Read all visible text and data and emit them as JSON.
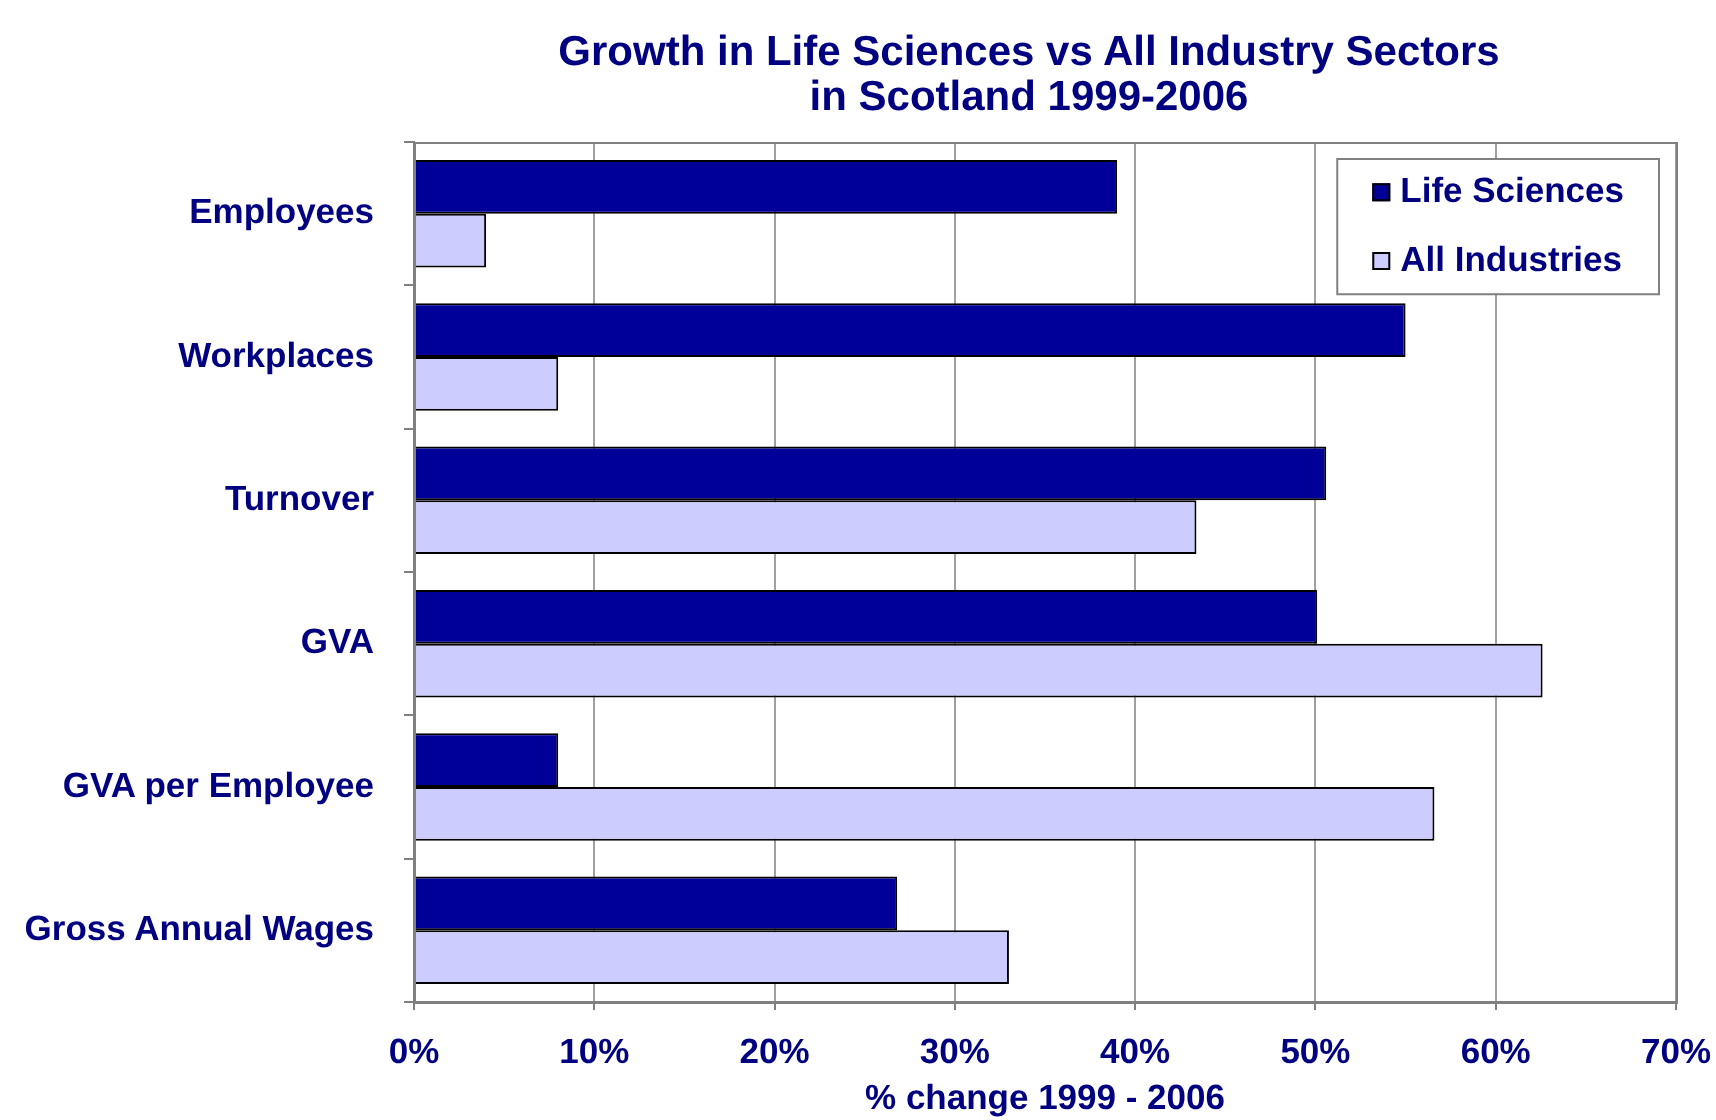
{
  "chart_data": {
    "type": "bar",
    "orientation": "horizontal",
    "title": "Growth in Life Sciences vs All Industry Sectors in Scotland 1999-2006",
    "xlabel": "% change 1999 - 2006",
    "categories": [
      "Employees",
      "Workplaces",
      "Turnover",
      "GVA",
      "GVA per Employee",
      "Gross Annual Wages"
    ],
    "series": [
      {
        "name": "Life Sciences",
        "color": "#000099",
        "values": [
          39,
          55,
          50.6,
          50.1,
          8,
          26.8
        ]
      },
      {
        "name": "All Industries",
        "color": "#ccccff",
        "values": [
          4,
          8,
          43.4,
          62.6,
          56.6,
          33
        ]
      }
    ],
    "xlim": [
      0,
      70
    ],
    "xticks": [
      {
        "value": 0,
        "label": "0%"
      },
      {
        "value": 10,
        "label": "10%"
      },
      {
        "value": 20,
        "label": "20%"
      },
      {
        "value": 30,
        "label": "30%"
      },
      {
        "value": 40,
        "label": "40%"
      },
      {
        "value": 50,
        "label": "50%"
      },
      {
        "value": 60,
        "label": "60%"
      },
      {
        "value": 70,
        "label": "70%"
      }
    ],
    "grid": "x",
    "legend": "top right"
  }
}
